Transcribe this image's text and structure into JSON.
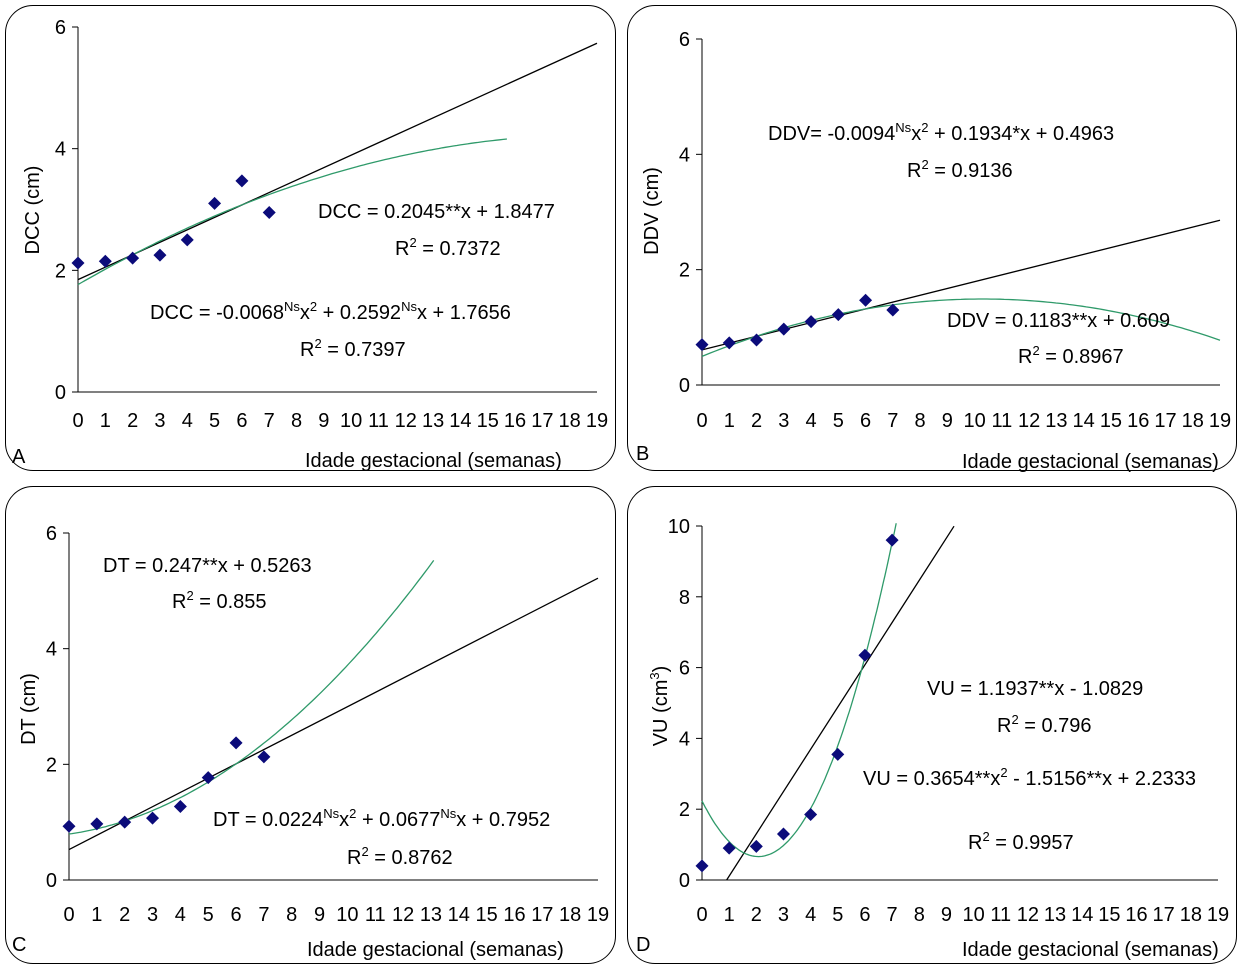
{
  "colors": {
    "marker": "#0b0b7a",
    "quad_curve": "#2f9a6a",
    "linear_line": "#000000"
  },
  "chart_data": [
    {
      "id": "A",
      "type": "scatter",
      "panel_label": "A",
      "xlabel": "Idade gestacional (semanas)",
      "ylabel": "DCC (cm)",
      "xlim": [
        0,
        19
      ],
      "ylim": [
        0,
        6
      ],
      "yticks": [
        0,
        2,
        4,
        6
      ],
      "xticks": [
        0,
        1,
        2,
        3,
        4,
        5,
        6,
        7,
        8,
        9,
        10,
        11,
        12,
        13,
        14,
        15,
        16,
        17,
        18,
        19
      ],
      "points": {
        "x": [
          0,
          1,
          2,
          3,
          4,
          5,
          6,
          7
        ],
        "y": [
          2.12,
          2.15,
          2.2,
          2.25,
          2.5,
          3.1,
          3.47,
          2.95
        ]
      },
      "linear_fit": {
        "a": 0.2045,
        "b": 1.8477,
        "x_end": 19
      },
      "quadratic_fit": {
        "a": -0.0068,
        "b": 0.2592,
        "c": 1.7656,
        "x_end": 15.7
      },
      "equations": {
        "linear": {
          "pre": "DCC = 0.2045**x + 1.8477",
          "r2": "R = 0.7372"
        },
        "quadratic": {
          "p1": "DCC = -0.0068",
          "s1": "Ns",
          "p2": "x",
          "s2": "2",
          "p3": " + 0.2592",
          "s3": "Ns",
          "p4": "x + 1.7656",
          "r2": "R = 0.7397"
        }
      }
    },
    {
      "id": "B",
      "type": "scatter",
      "panel_label": "B",
      "xlabel": "Idade gestacional (semanas)",
      "ylabel": "DDV (cm)",
      "xlim": [
        0,
        19
      ],
      "ylim": [
        0,
        6
      ],
      "yticks": [
        0,
        2,
        4,
        6
      ],
      "xticks": [
        0,
        1,
        2,
        3,
        4,
        5,
        6,
        7,
        8,
        9,
        10,
        11,
        12,
        13,
        14,
        15,
        16,
        17,
        18,
        19
      ],
      "points": {
        "x": [
          0,
          1,
          2,
          3,
          4,
          5,
          6,
          7
        ],
        "y": [
          0.7,
          0.73,
          0.78,
          0.97,
          1.1,
          1.22,
          1.47,
          1.3
        ]
      },
      "linear_fit": {
        "a": 0.1183,
        "b": 0.609,
        "x_end": 19
      },
      "quadratic_fit": {
        "a": -0.0094,
        "b": 0.1934,
        "c": 0.4963,
        "x_end": 19,
        "note_curve_offset": 0
      },
      "equations": {
        "quadratic": {
          "p1": "DDV= -0.0094",
          "s1": "Ns",
          "p2": "x",
          "s2": "2",
          "p3": " + 0.1934*x + 0.4963",
          "r2": "R = 0.9136"
        },
        "linear": {
          "pre": "DDV = 0.1183**x + 0.609",
          "r2": "R = 0.8967"
        }
      }
    },
    {
      "id": "C",
      "type": "scatter",
      "panel_label": "C",
      "xlabel": "Idade gestacional (semanas)",
      "ylabel": "DT (cm)",
      "xlim": [
        0,
        19
      ],
      "ylim": [
        0,
        6
      ],
      "yticks": [
        0,
        2,
        4,
        6
      ],
      "xticks": [
        0,
        1,
        2,
        3,
        4,
        5,
        6,
        7,
        8,
        9,
        10,
        11,
        12,
        13,
        14,
        15,
        16,
        17,
        18,
        19
      ],
      "points": {
        "x": [
          0,
          1,
          2,
          3,
          4,
          5,
          6,
          7
        ],
        "y": [
          0.93,
          0.97,
          1.0,
          1.07,
          1.27,
          1.77,
          2.37,
          2.13
        ]
      },
      "linear_fit": {
        "a": 0.247,
        "b": 0.5263,
        "x_end": 19
      },
      "quadratic_fit": {
        "a": 0.0224,
        "b": 0.0677,
        "c": 0.7952,
        "x_end": 13.1
      },
      "equations": {
        "linear": {
          "pre": "DT = 0.247**x + 0.5263",
          "r2": "R = 0.855"
        },
        "quadratic": {
          "p1": "DT = 0.0224",
          "s1": "Ns",
          "p2": "x",
          "s2": "2",
          "p3": " + 0.0677",
          "s3": "Ns",
          "p4": "x + 0.7952",
          "r2": "R = 0.8762"
        }
      }
    },
    {
      "id": "D",
      "type": "scatter",
      "panel_label": "D",
      "xlabel": "Idade gestacional (semanas)",
      "ylabel_pre": "VU (cm",
      "ylabel_sup": "3",
      "ylabel_post": ")",
      "xlim": [
        0,
        19
      ],
      "ylim": [
        0,
        10
      ],
      "yticks": [
        0,
        2,
        4,
        6,
        8,
        10
      ],
      "xticks": [
        0,
        1,
        2,
        3,
        4,
        5,
        6,
        7,
        8,
        9,
        10,
        11,
        12,
        13,
        14,
        15,
        16,
        17,
        18,
        19
      ],
      "points": {
        "x": [
          0,
          1,
          2,
          3,
          4,
          5,
          6,
          7
        ],
        "y": [
          0.4,
          0.9,
          0.95,
          1.3,
          1.85,
          3.55,
          6.35,
          9.6
        ]
      },
      "linear_fit": {
        "a": 1.1937,
        "b": -1.0829,
        "x_end": 9.28,
        "x_start": 0.91
      },
      "quadratic_fit": {
        "a": 0.3654,
        "b": -1.5156,
        "c": 2.2333,
        "x_end": 7.15
      },
      "equations": {
        "linear": {
          "pre": "VU = 1.1937**x - 1.0829",
          "r2": "R = 0.796"
        },
        "quadratic": {
          "p1": "VU = 0.3654**x",
          "s2": "2",
          "p3": " - 1.5156**x + 2.2333",
          "r2": "R = 0.9957"
        }
      }
    }
  ]
}
